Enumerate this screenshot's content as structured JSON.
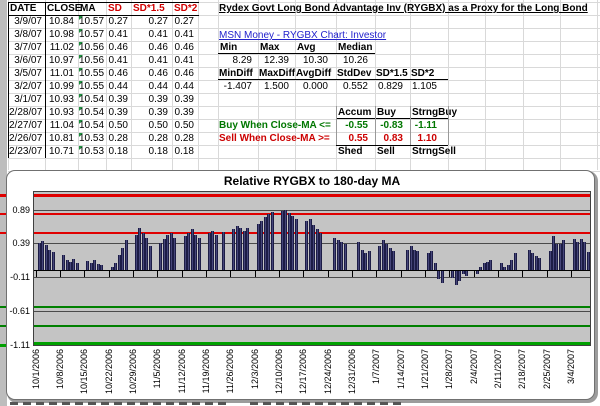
{
  "sheet": {
    "title": "Rydex Govt Long Bond Advantage Inv (RYGBX) as a Proxy for the Long Bond",
    "link_text": "MSN Money - RYGBX Chart: Investor",
    "left_table": {
      "headers": [
        "DATE",
        "CLOSE",
        "MA",
        "SD",
        "SD*1.5",
        "SD*2"
      ],
      "header_colors": [
        "#000000",
        "#000000",
        "#000000",
        "#D00000",
        "#D00000",
        "#D00000"
      ],
      "rows": [
        [
          "3/9/07",
          "10.84",
          "10.57",
          "0.27",
          "0.27",
          "0.27"
        ],
        [
          "3/8/07",
          "10.98",
          "10.57",
          "0.41",
          "0.41",
          "0.41"
        ],
        [
          "3/7/07",
          "11.02",
          "10.56",
          "0.46",
          "0.46",
          "0.46"
        ],
        [
          "3/6/07",
          "10.97",
          "10.56",
          "0.41",
          "0.41",
          "0.41"
        ],
        [
          "3/5/07",
          "11.01",
          "10.55",
          "0.46",
          "0.46",
          "0.46"
        ],
        [
          "3/2/07",
          "10.99",
          "10.55",
          "0.44",
          "0.44",
          "0.44"
        ],
        [
          "3/1/07",
          "10.93",
          "10.54",
          "0.39",
          "0.39",
          "0.39"
        ],
        [
          "2/28/07",
          "10.93",
          "10.54",
          "0.39",
          "0.39",
          "0.39"
        ],
        [
          "2/27/07",
          "11.04",
          "10.54",
          "0.50",
          "0.50",
          "0.50"
        ],
        [
          "2/26/07",
          "10.81",
          "10.53",
          "0.28",
          "0.28",
          "0.28"
        ],
        [
          "2/23/07",
          "10.71",
          "10.53",
          "0.18",
          "0.18",
          "0.18"
        ]
      ]
    },
    "price_stats": {
      "headers": [
        "Min",
        "Max",
        "Avg",
        "Median"
      ],
      "values": [
        "8.29",
        "12.39",
        "10.30",
        "10.26"
      ]
    },
    "diff_stats": {
      "headers": [
        "MinDiff",
        "MaxDiff",
        "AvgDiff",
        "StdDev",
        "SD*1.5",
        "SD*2"
      ],
      "values": [
        "-1.407",
        "1.500",
        "0.000",
        "0.552",
        "0.829",
        "1.105"
      ]
    },
    "signals": {
      "buy_headers": [
        "Accum",
        "Buy",
        "StrngBuy"
      ],
      "buy_label": "Buy When Close-MA <=",
      "buy_values": [
        "-0.55",
        "-0.83",
        "-1.11"
      ],
      "sell_label": "Sell When Close-MA >=",
      "sell_values": [
        "0.55",
        "0.83",
        "1.10"
      ],
      "sell_headers": [
        "Shed",
        "Sell",
        "StrngSell"
      ]
    },
    "icons": {
      "ma_cell_flag": "green-corner-triangle"
    }
  },
  "colors": {
    "buy_text": "#007700",
    "sell_text": "#CC0000",
    "red_header": "#D00000",
    "link": "#2222CC",
    "bar": "#46467A",
    "bar_edge": "#1C1C46",
    "plot_bg": "#C4C4C4",
    "sell_line": "#E00000",
    "buy_line": "#008000",
    "strong_buy_line": "#00A000",
    "cell_flag": "#1E8E3E"
  },
  "chart_data": {
    "type": "bar",
    "title": "Relative RYGBX to 180-day MA",
    "ylim": [
      -1.11,
      1.15
    ],
    "yticks": [
      0.89,
      0.39,
      -0.11,
      -0.61,
      -1.11
    ],
    "grid": true,
    "legend": "none",
    "x_start_date": "10/1/2006",
    "x_total_days": 160,
    "xlabels": [
      "10/1/2006",
      "10/8/2006",
      "10/15/2006",
      "10/22/2006",
      "10/29/2006",
      "11/5/2006",
      "11/12/2006",
      "11/19/2006",
      "11/26/2006",
      "12/3/2006",
      "12/10/2006",
      "12/17/2006",
      "12/24/2006",
      "12/31/2006",
      "1/7/2007",
      "1/14/2007",
      "1/21/2007",
      "1/28/2007",
      "2/4/2007",
      "2/11/2007",
      "2/18/2007",
      "2/25/2007",
      "3/4/2007"
    ],
    "threshold_lines": {
      "red": [
        1.1,
        0.83,
        0.55
      ],
      "green": [
        -0.55,
        -0.83,
        -1.11
      ]
    },
    "series": [
      [
        "10/2/2006",
        0.4
      ],
      [
        "10/3/2006",
        0.43
      ],
      [
        "10/4/2006",
        0.37
      ],
      [
        "10/5/2006",
        0.3
      ],
      [
        "10/6/2006",
        0.27
      ],
      [
        "10/9/2006",
        0.22
      ],
      [
        "10/10/2006",
        0.15
      ],
      [
        "10/11/2006",
        0.12
      ],
      [
        "10/12/2006",
        0.16
      ],
      [
        "10/13/2006",
        0.11
      ],
      [
        "10/16/2006",
        0.13
      ],
      [
        "10/17/2006",
        0.11
      ],
      [
        "10/18/2006",
        0.15
      ],
      [
        "10/19/2006",
        0.09
      ],
      [
        "10/20/2006",
        0.07
      ],
      [
        "10/23/2006",
        0.05
      ],
      [
        "10/24/2006",
        0.1
      ],
      [
        "10/25/2006",
        0.22
      ],
      [
        "10/26/2006",
        0.32
      ],
      [
        "10/27/2006",
        0.45
      ],
      [
        "10/30/2006",
        0.52
      ],
      [
        "10/31/2006",
        0.62
      ],
      [
        "11/1/2006",
        0.55
      ],
      [
        "11/2/2006",
        0.48
      ],
      [
        "11/3/2006",
        0.35
      ],
      [
        "11/6/2006",
        0.4
      ],
      [
        "11/7/2006",
        0.46
      ],
      [
        "11/8/2006",
        0.52
      ],
      [
        "11/9/2006",
        0.55
      ],
      [
        "11/10/2006",
        0.48
      ],
      [
        "11/13/2006",
        0.5
      ],
      [
        "11/14/2006",
        0.55
      ],
      [
        "11/15/2006",
        0.6
      ],
      [
        "11/16/2006",
        0.52
      ],
      [
        "11/17/2006",
        0.48
      ],
      [
        "11/20/2006",
        0.55
      ],
      [
        "11/21/2006",
        0.58
      ],
      [
        "11/22/2006",
        0.52
      ],
      [
        "11/24/2006",
        0.56
      ],
      [
        "11/27/2006",
        0.6
      ],
      [
        "11/28/2006",
        0.65
      ],
      [
        "11/29/2006",
        0.62
      ],
      [
        "11/30/2006",
        0.58
      ],
      [
        "12/1/2006",
        0.62
      ],
      [
        "12/4/2006",
        0.68
      ],
      [
        "12/5/2006",
        0.72
      ],
      [
        "12/6/2006",
        0.78
      ],
      [
        "12/7/2006",
        0.82
      ],
      [
        "12/8/2006",
        0.85
      ],
      [
        "12/11/2006",
        0.87
      ],
      [
        "12/12/2006",
        0.89
      ],
      [
        "12/13/2006",
        0.84
      ],
      [
        "12/14/2006",
        0.8
      ],
      [
        "12/15/2006",
        0.76
      ],
      [
        "12/18/2006",
        0.72
      ],
      [
        "12/19/2006",
        0.75
      ],
      [
        "12/20/2006",
        0.66
      ],
      [
        "12/21/2006",
        0.6
      ],
      [
        "12/22/2006",
        0.55
      ],
      [
        "12/26/2006",
        0.48
      ],
      [
        "12/27/2006",
        0.45
      ],
      [
        "12/28/2006",
        0.42
      ],
      [
        "12/29/2006",
        0.38
      ],
      [
        "1/2/2007",
        0.42
      ],
      [
        "1/3/2007",
        0.3
      ],
      [
        "1/4/2007",
        0.25
      ],
      [
        "1/5/2007",
        0.28
      ],
      [
        "1/8/2007",
        0.35
      ],
      [
        "1/9/2007",
        0.45
      ],
      [
        "1/10/2007",
        0.38
      ],
      [
        "1/11/2007",
        0.32
      ],
      [
        "1/12/2007",
        0.28
      ],
      [
        "1/16/2007",
        0.3
      ],
      [
        "1/17/2007",
        0.35
      ],
      [
        "1/18/2007",
        0.3
      ],
      [
        "1/19/2007",
        0.28
      ],
      [
        "1/22/2007",
        0.25
      ],
      [
        "1/23/2007",
        0.28
      ],
      [
        "1/24/2007",
        0.1
      ],
      [
        "1/25/2007",
        -0.12
      ],
      [
        "1/26/2007",
        -0.18
      ],
      [
        "1/29/2007",
        -0.1
      ],
      [
        "1/30/2007",
        -0.2
      ],
      [
        "1/31/2007",
        -0.15
      ],
      [
        "2/1/2007",
        -0.05
      ],
      [
        "2/2/2007",
        -0.08
      ],
      [
        "2/5/2007",
        -0.04
      ],
      [
        "2/6/2007",
        0.05
      ],
      [
        "2/7/2007",
        0.1
      ],
      [
        "2/8/2007",
        0.12
      ],
      [
        "2/9/2007",
        0.15
      ],
      [
        "2/12/2007",
        0.1
      ],
      [
        "2/13/2007",
        0.05
      ],
      [
        "2/14/2007",
        0.08
      ],
      [
        "2/15/2007",
        0.15
      ],
      [
        "2/16/2007",
        0.25
      ],
      [
        "2/20/2007",
        0.3
      ],
      [
        "2/21/2007",
        0.25
      ],
      [
        "2/22/2007",
        0.2
      ],
      [
        "2/23/2007",
        0.18
      ],
      [
        "2/26/2007",
        0.28
      ],
      [
        "2/27/2007",
        0.5
      ],
      [
        "2/28/2007",
        0.39
      ],
      [
        "3/1/2007",
        0.39
      ],
      [
        "3/2/2007",
        0.44
      ],
      [
        "3/5/2007",
        0.46
      ],
      [
        "3/6/2007",
        0.41
      ],
      [
        "3/7/2007",
        0.46
      ],
      [
        "3/8/2007",
        0.41
      ],
      [
        "3/9/2007",
        0.27
      ]
    ]
  }
}
